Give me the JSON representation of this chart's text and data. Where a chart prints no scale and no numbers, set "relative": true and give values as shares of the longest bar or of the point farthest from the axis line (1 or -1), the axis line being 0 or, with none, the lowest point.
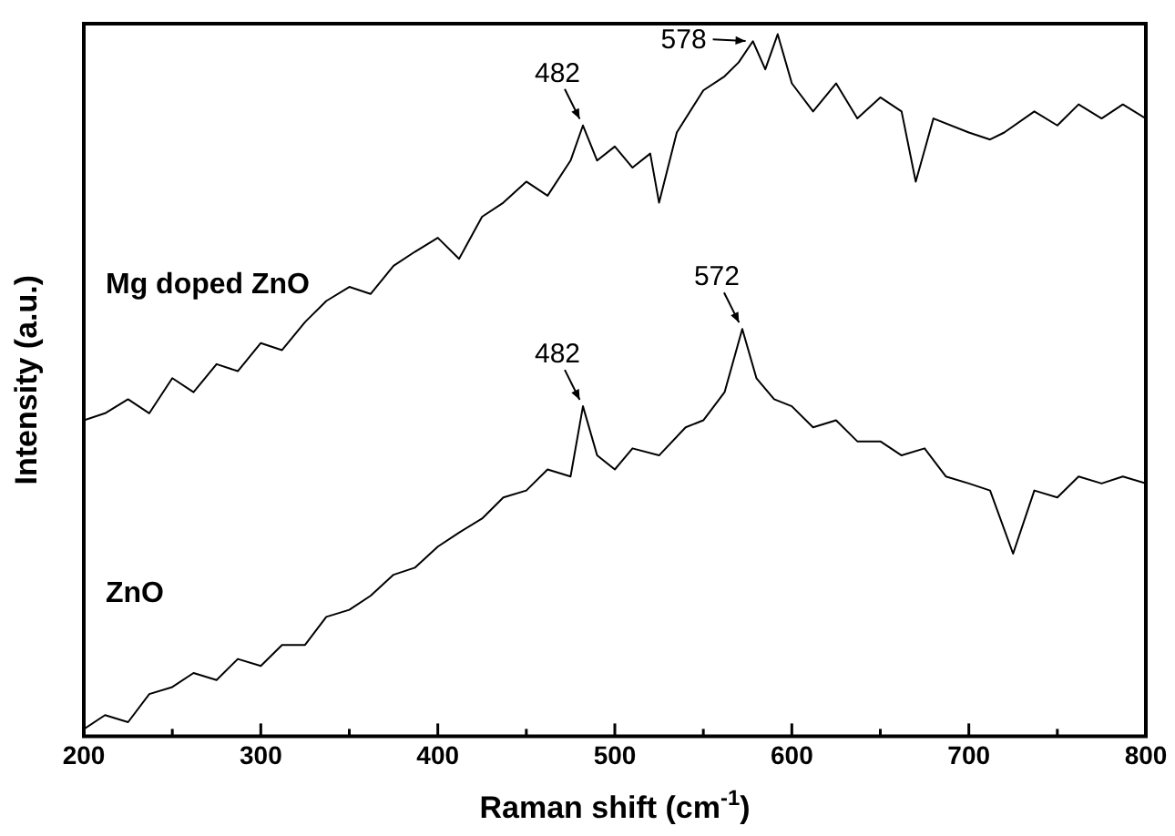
{
  "chart_data": {
    "type": "line",
    "relative": true,
    "xlabel": "Raman shift (cm$^{-1}$)",
    "ylabel": "Intensity (a.u.)",
    "xlim": [
      200,
      800
    ],
    "xticks": [
      200,
      {
        "value": 250,
        "label": null
      },
      300,
      {
        "value": 350,
        "label": null
      },
      400,
      {
        "value": 450,
        "label": null
      },
      500,
      {
        "value": 550,
        "label": null
      },
      600,
      {
        "value": 650,
        "label": null
      },
      700,
      {
        "value": 750,
        "label": null
      },
      800
    ],
    "grid": false,
    "legend": false,
    "marker": "none",
    "line_style": "solid",
    "x": [
      200,
      212,
      225,
      237,
      250,
      262,
      275,
      287,
      300,
      312,
      325,
      337,
      350,
      362,
      375,
      387,
      400,
      412,
      425,
      437,
      450,
      462,
      475,
      482,
      490,
      500,
      510,
      520,
      525,
      535,
      550,
      562,
      570,
      578,
      585,
      592,
      600,
      612,
      625,
      637,
      650,
      662,
      670,
      680,
      700,
      712,
      720,
      737,
      750,
      762,
      775,
      787,
      800
    ],
    "series": [
      {
        "name": "Mg doped ZnO",
        "color": "#000000",
        "values": [
          0.45,
          0.46,
          0.48,
          0.46,
          0.51,
          0.49,
          0.53,
          0.52,
          0.56,
          0.55,
          0.59,
          0.62,
          0.64,
          0.63,
          0.67,
          0.69,
          0.71,
          0.68,
          0.74,
          0.76,
          0.79,
          0.77,
          0.82,
          0.87,
          0.82,
          0.84,
          0.81,
          0.83,
          0.76,
          0.86,
          0.92,
          0.94,
          0.96,
          0.99,
          0.95,
          1.0,
          0.93,
          0.89,
          0.93,
          0.88,
          0.91,
          0.89,
          0.79,
          0.88,
          0.86,
          0.85,
          0.86,
          0.89,
          0.87,
          0.9,
          0.88,
          0.9,
          0.88
        ]
      },
      {
        "name": "ZnO",
        "color": "#000000",
        "x": [
          200,
          212,
          225,
          237,
          250,
          262,
          275,
          287,
          300,
          312,
          325,
          337,
          350,
          362,
          375,
          387,
          400,
          412,
          425,
          437,
          450,
          462,
          475,
          482,
          490,
          500,
          510,
          525,
          540,
          550,
          562,
          572,
          580,
          590,
          600,
          612,
          625,
          637,
          650,
          662,
          675,
          687,
          700,
          712,
          725,
          737,
          750,
          762,
          775,
          787,
          800
        ],
        "values": [
          0.01,
          0.03,
          0.02,
          0.06,
          0.07,
          0.09,
          0.08,
          0.11,
          0.1,
          0.13,
          0.13,
          0.17,
          0.18,
          0.2,
          0.23,
          0.24,
          0.27,
          0.29,
          0.31,
          0.34,
          0.35,
          0.38,
          0.37,
          0.47,
          0.4,
          0.38,
          0.41,
          0.4,
          0.44,
          0.45,
          0.49,
          0.58,
          0.51,
          0.48,
          0.47,
          0.44,
          0.45,
          0.42,
          0.42,
          0.4,
          0.41,
          0.37,
          0.36,
          0.35,
          0.26,
          0.35,
          0.34,
          0.37,
          0.36,
          0.37,
          0.36
        ]
      }
    ],
    "annotations": [
      {
        "text": "482",
        "x": 482,
        "y": 0.87
      },
      {
        "text": "578",
        "x": 578,
        "y": 0.99
      },
      {
        "text": "482",
        "x": 482,
        "y": 0.47
      },
      {
        "text": "572",
        "x": 572,
        "y": 0.58
      }
    ]
  }
}
